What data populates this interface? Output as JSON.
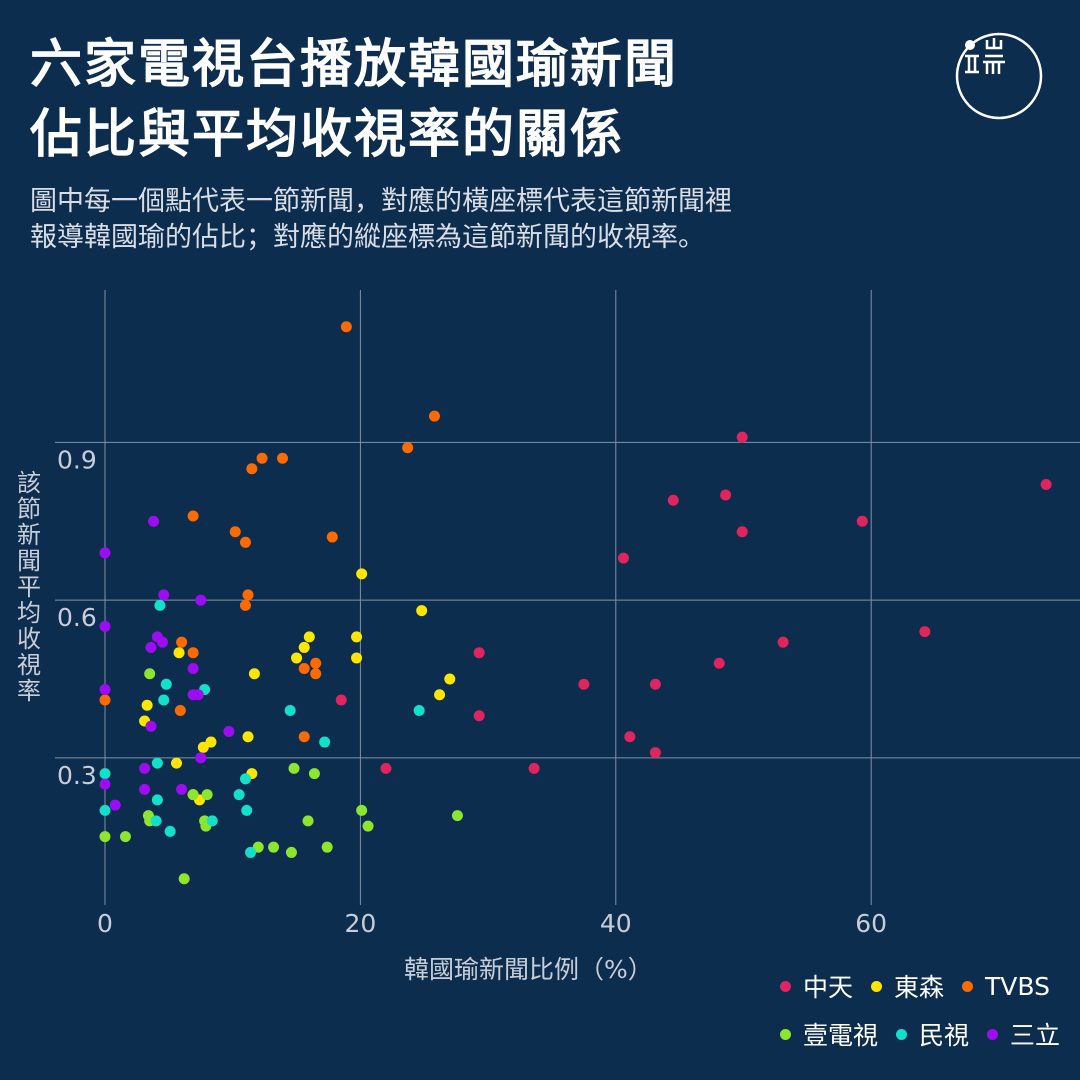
{
  "title_lines": [
    "六家電視台播放韓國瑜新聞",
    "佔比與平均收視率的關係"
  ],
  "subtitle_lines": [
    "圖中每一個點代表一節新聞，對應的橫座標代表這節新聞裡",
    "報導韓國瑜的佔比；對應的縱座標為這節新聞的收視率。"
  ],
  "logo_text": "端",
  "chart_data": {
    "type": "scatter",
    "xlabel": "韓國瑜新聞比例（%）",
    "ylabel": "該節新聞平均收視率",
    "xlim": [
      0,
      75
    ],
    "ylim": [
      0.02,
      1.19
    ],
    "xticks": [
      0,
      20,
      40,
      60
    ],
    "yticks": [
      0.3,
      0.6,
      0.9
    ],
    "ytick_labels": [
      "0.3",
      "0.6",
      "0.9"
    ],
    "grid": true,
    "legend_position": "bottom-right",
    "series": [
      {
        "name": "中天",
        "color": "#e0245e",
        "points": [
          [
            18.5,
            0.41
          ],
          [
            22.0,
            0.28
          ],
          [
            29.3,
            0.5
          ],
          [
            29.3,
            0.38
          ],
          [
            33.6,
            0.28
          ],
          [
            37.5,
            0.44
          ],
          [
            40.6,
            0.68
          ],
          [
            41.1,
            0.34
          ],
          [
            43.1,
            0.31
          ],
          [
            43.1,
            0.44
          ],
          [
            44.5,
            0.79
          ],
          [
            48.1,
            0.48
          ],
          [
            48.6,
            0.8
          ],
          [
            49.9,
            0.91
          ],
          [
            49.9,
            0.73
          ],
          [
            53.1,
            0.52
          ],
          [
            59.3,
            0.75
          ],
          [
            64.2,
            0.54
          ],
          [
            73.7,
            0.82
          ]
        ]
      },
      {
        "name": "東森",
        "color": "#ffe600",
        "points": [
          [
            3.1,
            0.37
          ],
          [
            3.3,
            0.4
          ],
          [
            5.6,
            0.29
          ],
          [
            5.8,
            0.5
          ],
          [
            6.9,
            0.23
          ],
          [
            7.4,
            0.22
          ],
          [
            7.7,
            0.32
          ],
          [
            8.3,
            0.33
          ],
          [
            11.2,
            0.34
          ],
          [
            11.5,
            0.27
          ],
          [
            11.7,
            0.46
          ],
          [
            15.0,
            0.49
          ],
          [
            15.6,
            0.51
          ],
          [
            16.0,
            0.53
          ],
          [
            19.7,
            0.53
          ],
          [
            19.7,
            0.49
          ],
          [
            20.1,
            0.65
          ],
          [
            24.8,
            0.58
          ],
          [
            26.2,
            0.42
          ],
          [
            27.0,
            0.45
          ]
        ]
      },
      {
        "name": "TVBS",
        "color": "#ff6a00",
        "points": [
          [
            0.0,
            0.41
          ],
          [
            5.9,
            0.39
          ],
          [
            6.0,
            0.52
          ],
          [
            6.9,
            0.5
          ],
          [
            6.9,
            0.76
          ],
          [
            10.2,
            0.73
          ],
          [
            11.0,
            0.71
          ],
          [
            11.0,
            0.59
          ],
          [
            11.2,
            0.61
          ],
          [
            11.5,
            0.85
          ],
          [
            12.3,
            0.87
          ],
          [
            13.9,
            0.87
          ],
          [
            15.6,
            0.47
          ],
          [
            15.6,
            0.34
          ],
          [
            16.5,
            0.46
          ],
          [
            16.5,
            0.48
          ],
          [
            17.8,
            0.72
          ],
          [
            18.9,
            1.12
          ],
          [
            23.7,
            0.89
          ],
          [
            25.8,
            0.95
          ]
        ]
      },
      {
        "name": "壹電視",
        "color": "#8ce62e",
        "points": [
          [
            0.0,
            0.15
          ],
          [
            1.6,
            0.15
          ],
          [
            3.5,
            0.46
          ],
          [
            3.4,
            0.19
          ],
          [
            3.5,
            0.18
          ],
          [
            6.2,
            0.07
          ],
          [
            6.9,
            0.23
          ],
          [
            7.8,
            0.18
          ],
          [
            7.9,
            0.17
          ],
          [
            8.0,
            0.23
          ],
          [
            12.0,
            0.13
          ],
          [
            13.2,
            0.13
          ],
          [
            14.6,
            0.12
          ],
          [
            14.8,
            0.28
          ],
          [
            15.9,
            0.18
          ],
          [
            16.4,
            0.27
          ],
          [
            17.4,
            0.13
          ],
          [
            20.1,
            0.2
          ],
          [
            20.6,
            0.17
          ],
          [
            27.6,
            0.19
          ]
        ]
      },
      {
        "name": "民視",
        "color": "#12e0c8",
        "points": [
          [
            0.0,
            0.27
          ],
          [
            0.0,
            0.2
          ],
          [
            4.1,
            0.29
          ],
          [
            4.1,
            0.22
          ],
          [
            4.0,
            0.18
          ],
          [
            4.3,
            0.59
          ],
          [
            4.6,
            0.41
          ],
          [
            4.8,
            0.44
          ],
          [
            5.1,
            0.16
          ],
          [
            7.8,
            0.43
          ],
          [
            8.4,
            0.18
          ],
          [
            10.5,
            0.23
          ],
          [
            11.0,
            0.26
          ],
          [
            11.1,
            0.2
          ],
          [
            11.4,
            0.12
          ],
          [
            14.5,
            0.39
          ],
          [
            17.2,
            0.33
          ],
          [
            24.6,
            0.39
          ]
        ]
      },
      {
        "name": "三立",
        "color": "#9d0cf2",
        "points": [
          [
            0.0,
            0.69
          ],
          [
            0.0,
            0.55
          ],
          [
            0.0,
            0.43
          ],
          [
            0.0,
            0.25
          ],
          [
            0.8,
            0.21
          ],
          [
            3.1,
            0.28
          ],
          [
            3.1,
            0.24
          ],
          [
            3.6,
            0.51
          ],
          [
            3.6,
            0.36
          ],
          [
            3.8,
            0.75
          ],
          [
            4.1,
            0.53
          ],
          [
            4.5,
            0.52
          ],
          [
            4.6,
            0.61
          ],
          [
            6.0,
            0.24
          ],
          [
            6.9,
            0.42
          ],
          [
            6.9,
            0.47
          ],
          [
            7.3,
            0.42
          ],
          [
            7.5,
            0.3
          ],
          [
            7.5,
            0.6
          ],
          [
            9.7,
            0.35
          ]
        ]
      }
    ]
  }
}
